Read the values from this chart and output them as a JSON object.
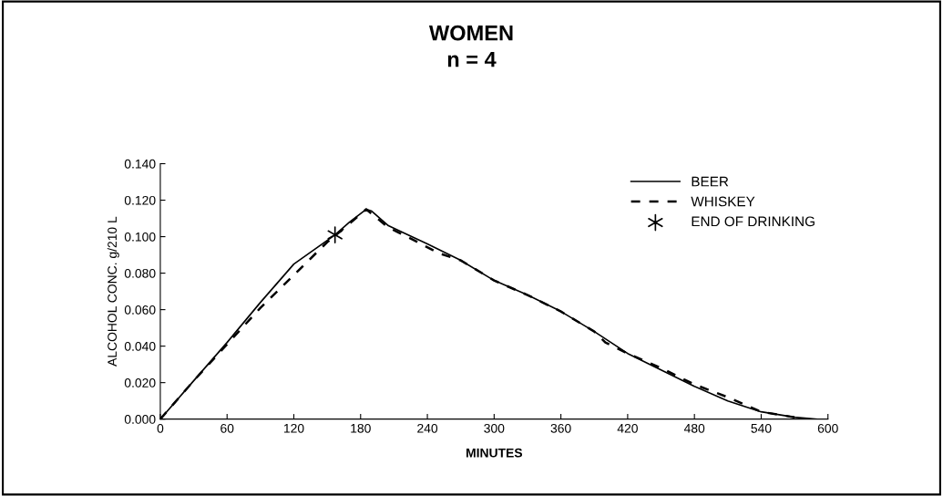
{
  "chart_data": {
    "type": "line",
    "title": "WOMEN\nn = 4",
    "xlabel": "MINUTES",
    "ylabel": "ALCOHOL CONC. g/210 L",
    "xlim": [
      0,
      600
    ],
    "xticks": [
      0,
      60,
      120,
      180,
      240,
      300,
      360,
      420,
      480,
      540,
      600
    ],
    "ylim": [
      0,
      0.14
    ],
    "yticks": [
      {
        "value": 0,
        "label": "0.000"
      },
      {
        "value": 0.02,
        "label": "0.020"
      },
      {
        "value": 0.04,
        "label": "0.040"
      },
      {
        "value": 0.06,
        "label": "0.060"
      },
      {
        "value": 0.08,
        "label": "0.080"
      },
      {
        "value": 0.1,
        "label": "0.100"
      },
      {
        "value": 0.12,
        "label": "0.120"
      },
      {
        "value": 0.14,
        "label": "0.140"
      }
    ],
    "grid": false,
    "legend": "top right",
    "series": [
      {
        "name": "BEER",
        "color": "#000000",
        "line_style": "solid",
        "marker": "none",
        "x": [
          0,
          30,
          60,
          90,
          120,
          157,
          170,
          185,
          190,
          205,
          240,
          270,
          300,
          330,
          360,
          390,
          420,
          450,
          480,
          510,
          540,
          570,
          590
        ],
        "values": [
          0,
          0.021,
          0.042,
          0.064,
          0.085,
          0.101,
          0.108,
          0.115,
          0.114,
          0.106,
          0.096,
          0.087,
          0.076,
          0.068,
          0.059,
          0.048,
          0.036,
          0.027,
          0.018,
          0.01,
          0.004,
          0.001,
          0
        ]
      },
      {
        "name": "WHISKEY",
        "color": "#000000",
        "line_style": "dashed",
        "marker": "none",
        "x": [
          0,
          30,
          60,
          90,
          120,
          150,
          160,
          185,
          205,
          225,
          250,
          270,
          300,
          330,
          360,
          390,
          400,
          420,
          450,
          480,
          510,
          540,
          570
        ],
        "values": [
          0,
          0.021,
          0.041,
          0.061,
          0.079,
          0.097,
          0.102,
          0.115,
          0.105,
          0.099,
          0.091,
          0.087,
          0.076,
          0.068,
          0.059,
          0.048,
          0.042,
          0.036,
          0.028,
          0.019,
          0.012,
          0.004,
          0.001
        ]
      },
      {
        "name": "END OF DRINKING",
        "type": "scatter",
        "color": "#000000",
        "marker": "cross",
        "x": [
          157
        ],
        "values": [
          0.101
        ]
      }
    ]
  }
}
